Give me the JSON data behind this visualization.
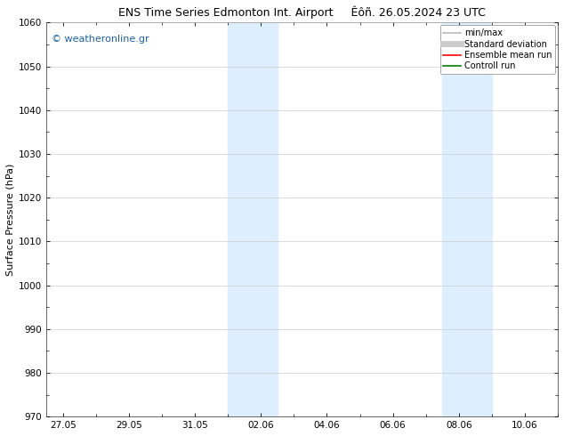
{
  "title_left": "ENS Time Series Edmonton Int. Airport",
  "title_right": "Êôñ. 26.05.2024 23 UTC",
  "ylabel": "Surface Pressure (hPa)",
  "ylim": [
    970,
    1060
  ],
  "yticks": [
    970,
    980,
    990,
    1000,
    1010,
    1020,
    1030,
    1040,
    1050,
    1060
  ],
  "xtick_labels": [
    "27.05",
    "29.05",
    "31.05",
    "02.06",
    "04.06",
    "06.06",
    "08.06",
    "10.06"
  ],
  "xtick_positions": [
    0,
    2,
    4,
    6,
    8,
    10,
    12,
    14
  ],
  "xlim": [
    -0.5,
    15.0
  ],
  "shaded_regions": [
    {
      "x_start": 5.0,
      "x_end": 6.5
    },
    {
      "x_start": 11.5,
      "x_end": 13.0
    }
  ],
  "shaded_color": "#ddeeff",
  "watermark_text": "© weatheronline.gr",
  "watermark_color": "#1a5fa8",
  "legend_items": [
    {
      "label": "min/max",
      "color": "#bbbbbb",
      "lw": 1.2,
      "style": "solid"
    },
    {
      "label": "Standard deviation",
      "color": "#cccccc",
      "lw": 5,
      "style": "solid"
    },
    {
      "label": "Ensemble mean run",
      "color": "red",
      "lw": 1.2,
      "style": "solid"
    },
    {
      "label": "Controll run",
      "color": "green",
      "lw": 1.2,
      "style": "solid"
    }
  ],
  "bg_color": "#ffffff",
  "grid_color": "#cccccc",
  "font_size_title": 9,
  "font_size_axis": 8,
  "font_size_tick": 7.5,
  "font_size_legend": 7,
  "font_size_watermark": 8
}
